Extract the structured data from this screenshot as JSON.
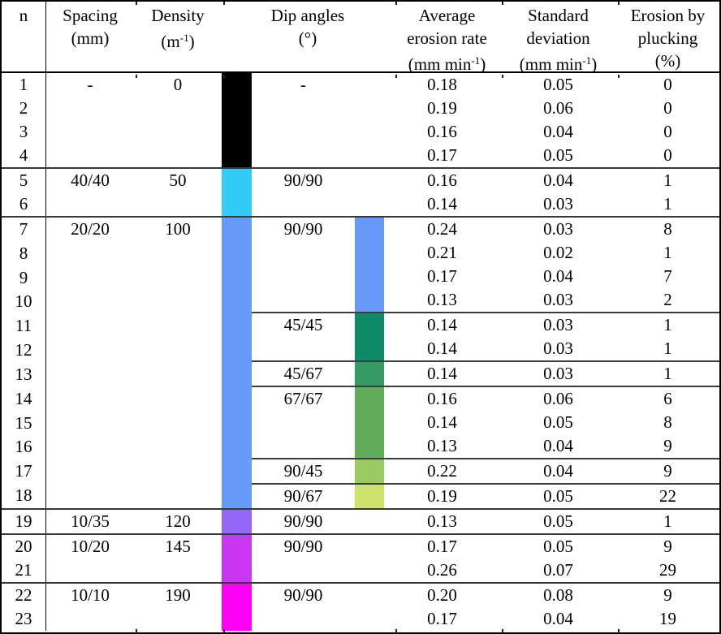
{
  "table": {
    "header": {
      "n": "n",
      "spacing": {
        "line1": "Spacing",
        "line2": "(mm)"
      },
      "density": {
        "line1": "Density",
        "unit_pre": "(m",
        "unit_sup": "-1",
        "unit_post": ")"
      },
      "dip": {
        "line1": "Dip angles",
        "line2": "(°)"
      },
      "avg": {
        "line1": "Average",
        "line2": "erosion rate",
        "unit_pre": "(mm min",
        "unit_sup": "-1",
        "unit_post": ")"
      },
      "std": {
        "line1": "Standard",
        "line2": "deviation",
        "unit_pre": "(mm min",
        "unit_sup": "-1",
        "unit_post": ")"
      },
      "pluck": {
        "line1": "Erosion by",
        "line2": "plucking",
        "line3": "(%)"
      }
    },
    "colors": {
      "no_joints": "#000000",
      "density_50": "#33ccf8",
      "density_100": "#6699f8",
      "dip_9090": "#6699f8",
      "dip_4545": "#0d8a66",
      "dip_4567": "#369a63",
      "dip_6767": "#63ad5a",
      "dip_9045": "#9bca62",
      "dip_9067": "#cce36b",
      "density_120": "#9668f8",
      "density_145": "#cb36f2",
      "density_190": "#ff00f5"
    },
    "groups": [
      {
        "rows": [
          "1",
          "2",
          "3",
          "4"
        ],
        "spacing": "-",
        "density": "0",
        "bar1": "#000000",
        "subgroups": [
          {
            "dip": "-",
            "bar2": null,
            "values": [
              {
                "avg": "0.18",
                "std": "0.05",
                "pluck": "0"
              },
              {
                "avg": "0.19",
                "std": "0.06",
                "pluck": "0"
              },
              {
                "avg": "0.16",
                "std": "0.04",
                "pluck": "0"
              },
              {
                "avg": "0.17",
                "std": "0.05",
                "pluck": "0"
              }
            ]
          }
        ]
      },
      {
        "rows": [
          "5",
          "6"
        ],
        "spacing": "40/40",
        "density": "50",
        "bar1": "#33ccf8",
        "subgroups": [
          {
            "dip": "90/90",
            "bar2": null,
            "values": [
              {
                "avg": "0.16",
                "std": "0.04",
                "pluck": "1"
              },
              {
                "avg": "0.14",
                "std": "0.03",
                "pluck": "1"
              }
            ]
          }
        ]
      },
      {
        "rows": [
          "7",
          "8",
          "9",
          "10",
          "11",
          "12",
          "13",
          "14",
          "15",
          "16",
          "17",
          "18"
        ],
        "spacing": "20/20",
        "density": "100",
        "bar1": "#6699f8",
        "subgroups": [
          {
            "dip": "90/90",
            "bar2": "#6699f8",
            "values": [
              {
                "avg": "0.24",
                "std": "0.03",
                "pluck": "8"
              },
              {
                "avg": "0.21",
                "std": "0.02",
                "pluck": "1"
              },
              {
                "avg": "0.17",
                "std": "0.04",
                "pluck": "7"
              },
              {
                "avg": "0.13",
                "std": "0.03",
                "pluck": "2"
              }
            ]
          },
          {
            "dip": "45/45",
            "bar2": "#0d8a66",
            "values": [
              {
                "avg": "0.14",
                "std": "0.03",
                "pluck": "1"
              },
              {
                "avg": "0.14",
                "std": "0.03",
                "pluck": "1"
              }
            ]
          },
          {
            "dip": "45/67",
            "bar2": "#369a63",
            "values": [
              {
                "avg": "0.14",
                "std": "0.03",
                "pluck": "1"
              }
            ]
          },
          {
            "dip": "67/67",
            "bar2": "#63ad5a",
            "values": [
              {
                "avg": "0.16",
                "std": "0.06",
                "pluck": "6"
              },
              {
                "avg": "0.14",
                "std": "0.05",
                "pluck": "8"
              },
              {
                "avg": "0.13",
                "std": "0.04",
                "pluck": "9"
              }
            ]
          },
          {
            "dip": "90/45",
            "bar2": "#9bca62",
            "values": [
              {
                "avg": "0.22",
                "std": "0.04",
                "pluck": "9"
              }
            ]
          },
          {
            "dip": "90/67",
            "bar2": "#cce36b",
            "values": [
              {
                "avg": "0.19",
                "std": "0.05",
                "pluck": "22"
              }
            ]
          }
        ]
      },
      {
        "rows": [
          "19"
        ],
        "spacing": "10/35",
        "density": "120",
        "bar1": "#9668f8",
        "subgroups": [
          {
            "dip": "90/90",
            "bar2": null,
            "values": [
              {
                "avg": "0.13",
                "std": "0.05",
                "pluck": "1"
              }
            ]
          }
        ]
      },
      {
        "rows": [
          "20",
          "21"
        ],
        "spacing": "10/20",
        "density": "145",
        "bar1": "#cb36f2",
        "subgroups": [
          {
            "dip": "90/90",
            "bar2": null,
            "values": [
              {
                "avg": "0.17",
                "std": "0.05",
                "pluck": "9"
              },
              {
                "avg": "0.26",
                "std": "0.07",
                "pluck": "29"
              }
            ]
          }
        ]
      },
      {
        "rows": [
          "22",
          "23"
        ],
        "spacing": "10/10",
        "density": "190",
        "bar1": "#ff00f5",
        "subgroups": [
          {
            "dip": "90/90",
            "bar2": null,
            "values": [
              {
                "avg": "0.20",
                "std": "0.08",
                "pluck": "9"
              },
              {
                "avg": "0.17",
                "std": "0.04",
                "pluck": "19"
              }
            ]
          }
        ]
      }
    ]
  }
}
